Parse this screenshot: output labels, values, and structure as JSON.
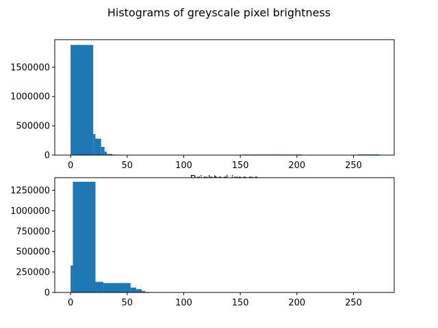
{
  "figure_title": "Histograms of greyscale pixel brightness",
  "colors": {
    "bar": "#1f77b4"
  },
  "chart_data": [
    {
      "type": "bar",
      "xlabel": "Brighted image",
      "ylabel": "",
      "xlim": [
        -14,
        286
      ],
      "ylim": [
        0,
        1970000
      ],
      "xticks": [
        0,
        50,
        100,
        150,
        200,
        250
      ],
      "xtick_labels": [
        "0",
        "50",
        "100",
        "150",
        "200",
        "250"
      ],
      "yticks": [
        0,
        500000,
        1000000,
        1500000
      ],
      "ytick_labels": [
        "0",
        "500000",
        "1000000",
        "1500000"
      ],
      "grid": false,
      "bins": [
        {
          "x0": 0,
          "x1": 20,
          "value": 1880000
        },
        {
          "x0": 20,
          "x1": 22,
          "value": 360000
        },
        {
          "x0": 22,
          "x1": 27,
          "value": 280000
        },
        {
          "x0": 27,
          "x1": 30,
          "value": 140000
        },
        {
          "x0": 30,
          "x1": 32,
          "value": 60000
        },
        {
          "x0": 32,
          "x1": 37,
          "value": 20000
        },
        {
          "x0": 37,
          "x1": 40,
          "value": 8000
        },
        {
          "x0": 152,
          "x1": 205,
          "value": 10000
        },
        {
          "x0": 254,
          "x1": 273,
          "value": 12000
        }
      ]
    },
    {
      "type": "bar",
      "xlabel": "",
      "ylabel": "",
      "xlim": [
        -14,
        286
      ],
      "ylim": [
        0,
        1405000
      ],
      "xticks": [
        0,
        50,
        100,
        150,
        200,
        250
      ],
      "xtick_labels": [
        "0",
        "50",
        "100",
        "150",
        "200",
        "250"
      ],
      "yticks": [
        0,
        250000,
        500000,
        750000,
        1000000,
        1250000
      ],
      "ytick_labels": [
        "0",
        "250000",
        "500000",
        "750000",
        "1000000",
        "1250000"
      ],
      "grid": false,
      "bins": [
        {
          "x0": 0,
          "x1": 2,
          "value": 330000
        },
        {
          "x0": 2,
          "x1": 22,
          "value": 1355000
        },
        {
          "x0": 22,
          "x1": 29,
          "value": 130000
        },
        {
          "x0": 29,
          "x1": 53,
          "value": 115000
        },
        {
          "x0": 53,
          "x1": 58,
          "value": 60000
        },
        {
          "x0": 58,
          "x1": 63,
          "value": 40000
        },
        {
          "x0": 63,
          "x1": 66,
          "value": 18000
        },
        {
          "x0": 66,
          "x1": 70,
          "value": 6000
        }
      ]
    }
  ]
}
